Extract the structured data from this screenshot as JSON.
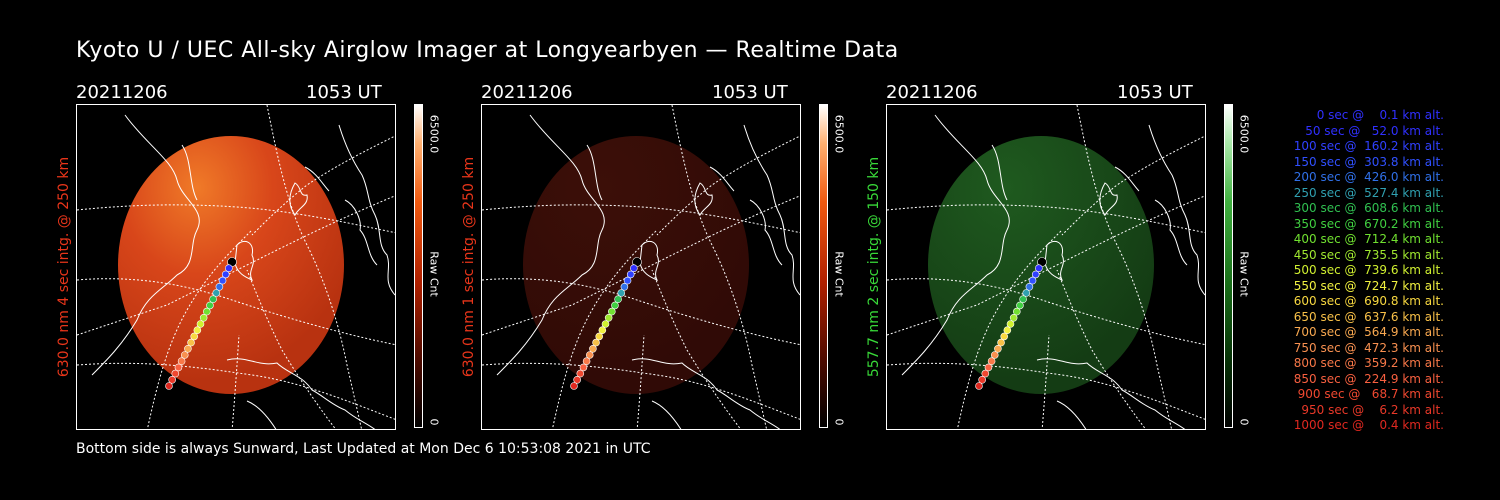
{
  "title": "Kyoto U / UEC All-sky Airglow Imager at Longyearbyen — Realtime Data",
  "footer": "Bottom side is always Sunward, Last Updated at Mon Dec  6 10:53:08 2021 in UTC",
  "panels": [
    {
      "date": "20211206",
      "time": "1053 UT",
      "ylabel": "630.0 nm 4 sec intg. @ 250 km",
      "label_color": "#e8351a",
      "cbar_max": "6500.0",
      "cbar_label": "Raw Cnt",
      "cbar_min": "0",
      "colormap": "red",
      "brightness": "bright"
    },
    {
      "date": "20211206",
      "time": "1053 UT",
      "ylabel": "630.0 nm 1 sec intg. @ 250 km",
      "label_color": "#e8351a",
      "cbar_max": "6500.0",
      "cbar_label": "Raw Cnt",
      "cbar_min": "0",
      "colormap": "red",
      "brightness": "dim"
    },
    {
      "date": "20211206",
      "time": "1053 UT",
      "ylabel": "557.7 nm 2 sec intg. @ 150 km",
      "label_color": "#38d838",
      "cbar_max": "6500.0",
      "cbar_label": "Raw Cnt",
      "cbar_min": "0",
      "colormap": "green",
      "brightness": "dim"
    }
  ],
  "legend": [
    {
      "text": "0 sec @    0.1 km alt.",
      "color": "#3030ff"
    },
    {
      "text": "50 sec @   52.0 km alt.",
      "color": "#3030ff"
    },
    {
      "text": "100 sec @  160.2 km alt.",
      "color": "#3040ff"
    },
    {
      "text": "150 sec @  303.8 km alt.",
      "color": "#3050ff"
    },
    {
      "text": "200 sec @  426.0 km alt.",
      "color": "#3070e8"
    },
    {
      "text": "250 sec @  527.4 km alt.",
      "color": "#30a0b0"
    },
    {
      "text": "300 sec @  608.6 km alt.",
      "color": "#30c050"
    },
    {
      "text": "350 sec @  670.2 km alt.",
      "color": "#40d040"
    },
    {
      "text": "400 sec @  712.4 km alt.",
      "color": "#70e030"
    },
    {
      "text": "450 sec @  735.5 km alt.",
      "color": "#a0e830"
    },
    {
      "text": "500 sec @  739.6 km alt.",
      "color": "#d0f030"
    },
    {
      "text": "550 sec @  724.7 km alt.",
      "color": "#f0f040"
    },
    {
      "text": "600 sec @  690.8 km alt.",
      "color": "#f8d840"
    },
    {
      "text": "650 sec @  637.6 km alt.",
      "color": "#f8c048"
    },
    {
      "text": "700 sec @  564.9 km alt.",
      "color": "#f8a850"
    },
    {
      "text": "750 sec @  472.3 km alt.",
      "color": "#f89050"
    },
    {
      "text": "800 sec @  359.2 km alt.",
      "color": "#f87848"
    },
    {
      "text": "850 sec @  224.9 km alt.",
      "color": "#f86040"
    },
    {
      "text": "900 sec @   68.7 km alt.",
      "color": "#f04830"
    },
    {
      "text": "950 sec @    6.2 km alt.",
      "color": "#e83828"
    },
    {
      "text": "1000 sec @    0.4 km alt.",
      "color": "#e02820"
    }
  ]
}
